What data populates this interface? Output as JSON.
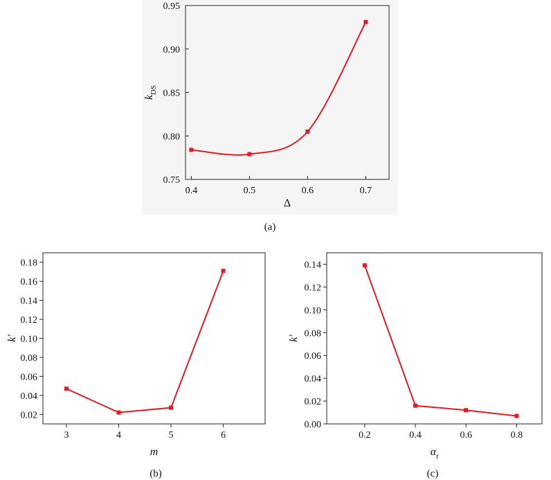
{
  "chart_data": [
    {
      "type": "line",
      "panel": "a",
      "caption": "(a)",
      "xlabel": "Δ",
      "ylabel_main": "k",
      "ylabel_sub": "DS",
      "x": [
        0.4,
        0.5,
        0.6,
        0.7
      ],
      "series": [
        {
          "values": [
            0.784,
            0.779,
            0.805,
            0.931
          ],
          "color": "#e8191f"
        }
      ],
      "xlim": [
        0.39,
        0.74
      ],
      "ylim": [
        0.75,
        0.95
      ],
      "xticks": [
        0.4,
        0.5,
        0.6,
        0.7
      ],
      "xtick_labels": [
        "0.4",
        "0.5",
        "0.6",
        "0.7"
      ],
      "yticks": [
        0.75,
        0.8,
        0.85,
        0.9,
        0.95
      ],
      "ytick_labels": [
        "0.75",
        "0.80",
        "0.85",
        "0.90",
        "0.95"
      ],
      "smooth": true
    },
    {
      "type": "line",
      "panel": "b",
      "caption": "(b)",
      "xlabel": "m",
      "ylabel_main": "k'",
      "ylabel_sub": "",
      "x": [
        3,
        4,
        5,
        6
      ],
      "series": [
        {
          "values": [
            0.047,
            0.022,
            0.027,
            0.171
          ],
          "color": "#e8191f"
        }
      ],
      "xlim": [
        2.55,
        6.8
      ],
      "ylim": [
        0.01,
        0.19
      ],
      "xticks": [
        3,
        4,
        5,
        6
      ],
      "xtick_labels": [
        "3",
        "4",
        "5",
        "6"
      ],
      "yticks": [
        0.02,
        0.04,
        0.06,
        0.08,
        0.1,
        0.12,
        0.14,
        0.16,
        0.18
      ],
      "ytick_labels": [
        "0.02",
        "0.04",
        "0.06",
        "0.08",
        "0.10",
        "0.12",
        "0.14",
        "0.16",
        "0.18"
      ],
      "smooth": false
    },
    {
      "type": "line",
      "panel": "c",
      "caption": "(c)",
      "xlabel": "α",
      "xlabel_sub": "t",
      "ylabel_main": "k'",
      "ylabel_sub": "",
      "x": [
        0.2,
        0.4,
        0.6,
        0.8
      ],
      "series": [
        {
          "values": [
            0.139,
            0.016,
            0.012,
            0.007
          ],
          "color": "#e8191f"
        }
      ],
      "xlim": [
        0.05,
        0.9
      ],
      "ylim": [
        0.0,
        0.15
      ],
      "xticks": [
        0.2,
        0.4,
        0.6,
        0.8
      ],
      "xtick_labels": [
        "0.2",
        "0.4",
        "0.6",
        "0.8"
      ],
      "yticks": [
        0.0,
        0.02,
        0.04,
        0.06,
        0.08,
        0.1,
        0.12,
        0.14
      ],
      "ytick_labels": [
        "0.00",
        "0.02",
        "0.04",
        "0.06",
        "0.08",
        "0.10",
        "0.12",
        "0.14"
      ],
      "smooth": false
    }
  ]
}
